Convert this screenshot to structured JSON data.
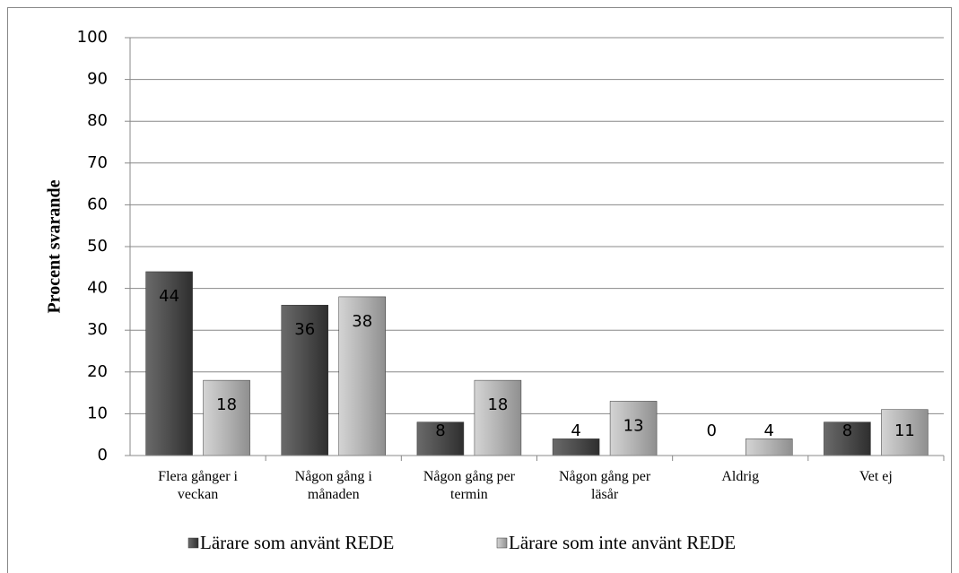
{
  "chart_data": {
    "type": "bar",
    "y_label": "Procent svarande",
    "categories": [
      "Flera gånger i\nveckan",
      "Någon gång i\nmånaden",
      "Någon gång per\ntermin",
      "Någon gång per\nläsår",
      "Aldrig",
      "Vet ej"
    ],
    "series": [
      {
        "name": "Lärare som använt REDE",
        "color": "#4d4d4d",
        "values": [
          44,
          36,
          8,
          4,
          0,
          8
        ]
      },
      {
        "name": "Lärare som inte använt REDE",
        "color": "#b3b3b3",
        "values": [
          18,
          38,
          18,
          13,
          4,
          11
        ]
      }
    ],
    "ylim": [
      0,
      100
    ],
    "yticks": [
      0,
      10,
      20,
      30,
      40,
      50,
      60,
      70,
      80,
      90,
      100
    ],
    "grid": true,
    "legend": "bottom"
  }
}
